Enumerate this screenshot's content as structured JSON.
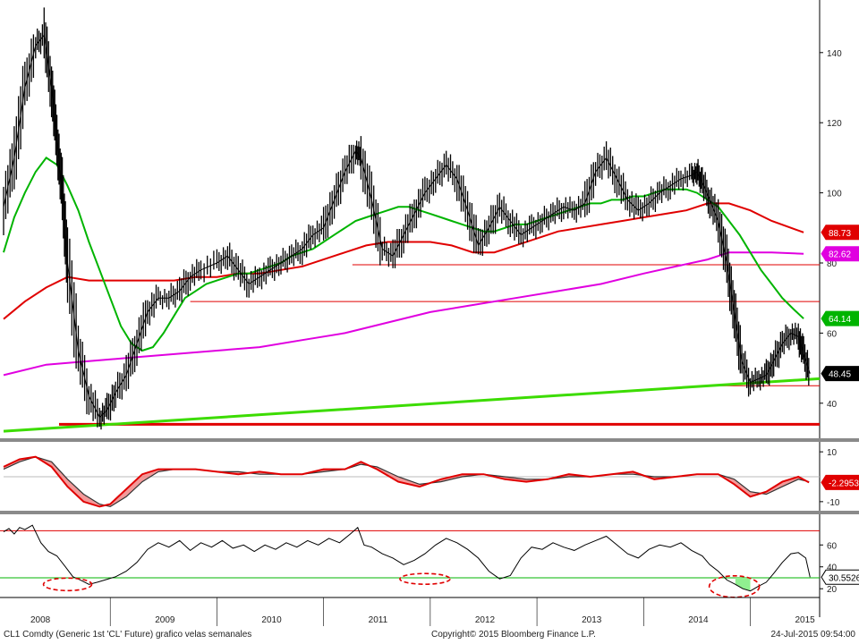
{
  "footer": {
    "left": "CL1 Comdty (Generic 1st 'CL' Future) grafico velas semanales",
    "center": "Copyright© 2015 Bloomberg Finance L.P.",
    "right": "24-Jul-2015 09:54:00"
  },
  "colors": {
    "price": "#000000",
    "ma_short": "#00b400",
    "ma_mid": "#e00000",
    "ma_long": "#e000e0",
    "trend_support": "#3cdc00",
    "support_line": "#e00000",
    "ellipse": "#e00000",
    "oversold_fill": "#90f090",
    "macd_fill": "#f08080"
  },
  "chart_data": [
    {
      "type": "line",
      "panel": "price",
      "ylim": [
        30,
        155
      ],
      "yticks": [
        40,
        60,
        80,
        100,
        120,
        140
      ],
      "x_years": [
        "2008",
        "2009",
        "2010",
        "2011",
        "2012",
        "2013",
        "2014",
        "2015"
      ],
      "x_range": [
        2008.0,
        2015.65
      ],
      "series": [
        {
          "role": "price",
          "x": [
            2008.0,
            2008.1,
            2008.2,
            2008.3,
            2008.38,
            2008.45,
            2008.5,
            2008.55,
            2008.6,
            2008.7,
            2008.8,
            2008.9,
            2008.97,
            2009.05,
            2009.15,
            2009.25,
            2009.35,
            2009.45,
            2009.55,
            2009.65,
            2009.75,
            2009.85,
            2010.0,
            2010.1,
            2010.2,
            2010.3,
            2010.4,
            2010.5,
            2010.6,
            2010.7,
            2010.8,
            2010.9,
            2011.0,
            2011.1,
            2011.2,
            2011.3,
            2011.35,
            2011.45,
            2011.55,
            2011.65,
            2011.75,
            2011.85,
            2011.95,
            2012.05,
            2012.15,
            2012.25,
            2012.35,
            2012.45,
            2012.55,
            2012.65,
            2012.75,
            2012.85,
            2012.95,
            2013.05,
            2013.15,
            2013.25,
            2013.35,
            2013.45,
            2013.55,
            2013.65,
            2013.75,
            2013.85,
            2013.95,
            2014.05,
            2014.15,
            2014.25,
            2014.35,
            2014.45,
            2014.5,
            2014.55,
            2014.62,
            2014.7,
            2014.78,
            2014.85,
            2014.92,
            2015.0,
            2015.08,
            2015.15,
            2015.22,
            2015.3,
            2015.38,
            2015.45,
            2015.5,
            2015.56
          ],
          "y": [
            96,
            110,
            130,
            142,
            145,
            130,
            115,
            100,
            80,
            55,
            42,
            36,
            38,
            43,
            48,
            57,
            66,
            70,
            70,
            72,
            76,
            78,
            80,
            82,
            78,
            74,
            76,
            78,
            80,
            82,
            84,
            88,
            90,
            98,
            106,
            112,
            110,
            98,
            84,
            82,
            88,
            94,
            100,
            104,
            108,
            104,
            95,
            85,
            90,
            96,
            92,
            88,
            90,
            92,
            94,
            96,
            95,
            97,
            106,
            110,
            104,
            98,
            95,
            97,
            100,
            102,
            104,
            105,
            106,
            103,
            98,
            92,
            80,
            66,
            52,
            46,
            47,
            48,
            52,
            57,
            60,
            59,
            54,
            48.45
          ]
        },
        {
          "role": "ma_short",
          "x": [
            2008.0,
            2008.1,
            2008.2,
            2008.3,
            2008.4,
            2008.5,
            2008.6,
            2008.7,
            2008.8,
            2008.9,
            2009.0,
            2009.1,
            2009.2,
            2009.3,
            2009.4,
            2009.5,
            2009.6,
            2009.7,
            2009.8,
            2009.9,
            2010.0,
            2010.1,
            2010.2,
            2010.3,
            2010.4,
            2010.5,
            2010.6,
            2010.7,
            2010.8,
            2010.9,
            2011.0,
            2011.1,
            2011.2,
            2011.3,
            2011.4,
            2011.5,
            2011.6,
            2011.7,
            2011.8,
            2011.9,
            2012.0,
            2012.1,
            2012.2,
            2012.3,
            2012.4,
            2012.5,
            2012.6,
            2012.7,
            2012.8,
            2012.9,
            2013.0,
            2013.1,
            2013.2,
            2013.3,
            2013.4,
            2013.5,
            2013.6,
            2013.7,
            2013.8,
            2013.9,
            2014.0,
            2014.1,
            2014.2,
            2014.3,
            2014.4,
            2014.5,
            2014.6,
            2014.7,
            2014.8,
            2014.9,
            2015.0,
            2015.1,
            2015.2,
            2015.3,
            2015.4,
            2015.5
          ],
          "y": [
            83,
            93,
            100,
            106,
            110,
            108,
            102,
            95,
            86,
            78,
            70,
            62,
            57,
            55,
            56,
            60,
            65,
            70,
            72,
            74,
            75,
            76,
            77,
            77,
            78,
            79,
            80,
            82,
            83,
            84,
            86,
            88,
            90,
            92,
            93,
            94,
            95,
            96,
            96,
            95,
            94,
            93,
            92,
            91,
            90,
            89,
            89,
            90,
            91,
            91,
            92,
            93,
            94,
            95,
            96,
            97,
            97,
            98,
            98,
            99,
            99,
            100,
            101,
            101,
            101,
            100,
            98,
            96,
            92,
            88,
            83,
            78,
            74,
            70,
            67,
            64.14
          ]
        },
        {
          "role": "ma_mid",
          "x": [
            2008.0,
            2008.2,
            2008.4,
            2008.6,
            2008.8,
            2009.0,
            2009.2,
            2009.4,
            2009.6,
            2009.8,
            2010.0,
            2010.2,
            2010.4,
            2010.6,
            2010.8,
            2011.0,
            2011.2,
            2011.4,
            2011.6,
            2011.8,
            2012.0,
            2012.2,
            2012.4,
            2012.6,
            2012.8,
            2013.0,
            2013.2,
            2013.4,
            2013.6,
            2013.8,
            2014.0,
            2014.2,
            2014.4,
            2014.6,
            2014.8,
            2015.0,
            2015.2,
            2015.5
          ],
          "y": [
            64,
            69,
            73,
            76,
            75,
            75,
            75,
            75,
            75,
            76,
            76,
            77,
            77,
            78,
            79,
            81,
            83,
            85,
            86,
            86,
            86,
            85,
            83,
            83,
            85,
            87,
            89,
            90,
            91,
            92,
            93,
            94,
            95,
            97,
            97,
            95,
            92,
            88.73
          ]
        },
        {
          "role": "ma_long",
          "x": [
            2008.0,
            2008.4,
            2008.8,
            2009.2,
            2009.6,
            2010.0,
            2010.4,
            2010.8,
            2011.2,
            2011.6,
            2012.0,
            2012.4,
            2012.8,
            2013.2,
            2013.6,
            2014.0,
            2014.3,
            2014.6,
            2014.8,
            2015.0,
            2015.2,
            2015.5
          ],
          "y": [
            48,
            51,
            52,
            53,
            54,
            55,
            56,
            58,
            60,
            63,
            66,
            68,
            70,
            72,
            74,
            77,
            79,
            81,
            83,
            83,
            83,
            82.62
          ]
        },
        {
          "role": "trend_support",
          "x": [
            2008.0,
            2015.65
          ],
          "y": [
            32,
            47
          ]
        },
        {
          "role": "support_line",
          "x": [
            2008.52,
            2015.65
          ],
          "y": [
            34,
            34
          ]
        },
        {
          "role": "resistance_1",
          "x": [
            2011.27,
            2015.65
          ],
          "y": [
            79.5,
            79.5
          ]
        },
        {
          "role": "resistance_2",
          "x": [
            2009.75,
            2015.65
          ],
          "y": [
            69,
            69
          ]
        },
        {
          "role": "support_recent",
          "x": [
            2014.65,
            2015.65
          ],
          "y": [
            45,
            45
          ]
        }
      ],
      "last_value_labels": [
        {
          "value": "88.73",
          "bg": "#e00000",
          "fg": "#ffffff",
          "y": 88.73
        },
        {
          "value": "82.62",
          "bg": "#e000e0",
          "fg": "#ffffff",
          "y": 82.62
        },
        {
          "value": "64.14",
          "bg": "#00b400",
          "fg": "#ffffff",
          "y": 64.14
        },
        {
          "value": "48.45",
          "bg": "#000000",
          "fg": "#ffffff",
          "y": 48.45
        }
      ]
    },
    {
      "type": "line",
      "panel": "macd",
      "ylim": [
        -14,
        14
      ],
      "yticks": [
        10,
        -10
      ],
      "series": [
        {
          "role": "macd",
          "x": [
            2008.0,
            2008.15,
            2008.3,
            2008.45,
            2008.6,
            2008.75,
            2008.9,
            2009.0,
            2009.15,
            2009.3,
            2009.45,
            2009.6,
            2009.8,
            2010.0,
            2010.2,
            2010.4,
            2010.6,
            2010.8,
            2011.0,
            2011.2,
            2011.35,
            2011.5,
            2011.7,
            2011.9,
            2012.1,
            2012.3,
            2012.5,
            2012.7,
            2012.9,
            2013.1,
            2013.3,
            2013.5,
            2013.7,
            2013.9,
            2014.1,
            2014.3,
            2014.5,
            2014.7,
            2014.85,
            2015.0,
            2015.15,
            2015.3,
            2015.45,
            2015.55
          ],
          "y": [
            4,
            7,
            8,
            4,
            -4,
            -10,
            -12,
            -11,
            -5,
            1,
            3,
            3,
            3,
            2,
            1,
            2,
            1,
            1,
            3,
            3,
            6,
            3,
            -2,
            -4,
            -1,
            1,
            1,
            -1,
            -2,
            -1,
            1,
            0,
            1,
            2,
            -1,
            0,
            1,
            1,
            -3,
            -8,
            -6,
            -2,
            0,
            -2.2953
          ]
        },
        {
          "role": "signal",
          "x": [
            2008.0,
            2008.15,
            2008.3,
            2008.45,
            2008.6,
            2008.75,
            2008.9,
            2009.0,
            2009.15,
            2009.3,
            2009.45,
            2009.6,
            2009.8,
            2010.0,
            2010.2,
            2010.4,
            2010.6,
            2010.8,
            2011.0,
            2011.2,
            2011.35,
            2011.5,
            2011.7,
            2011.9,
            2012.1,
            2012.3,
            2012.5,
            2012.7,
            2012.9,
            2013.1,
            2013.3,
            2013.5,
            2013.7,
            2013.9,
            2014.1,
            2014.3,
            2014.5,
            2014.7,
            2014.85,
            2015.0,
            2015.15,
            2015.3,
            2015.45,
            2015.55
          ],
          "y": [
            3,
            6,
            8,
            6,
            -1,
            -7,
            -11,
            -12,
            -8,
            -2,
            2,
            3,
            3,
            2,
            2,
            1,
            1,
            1,
            2,
            3,
            5,
            4,
            0,
            -3,
            -2,
            0,
            1,
            0,
            -1,
            -1,
            0,
            0,
            1,
            1,
            0,
            0,
            1,
            1,
            -1,
            -6,
            -7,
            -4,
            -1,
            -2
          ]
        }
      ],
      "last_value_labels": [
        {
          "value": "-2.2953",
          "bg": "#e00000",
          "fg": "#ffffff",
          "y": -2.2953
        }
      ]
    },
    {
      "type": "line",
      "panel": "rsi",
      "ylim": [
        12,
        88
      ],
      "yticks": [
        60,
        40,
        20
      ],
      "hlines": [
        {
          "y": 30,
          "color": "#00b400"
        },
        {
          "y": 73,
          "color": "#e00000"
        }
      ],
      "series": [
        {
          "role": "rsi",
          "x": [
            2008.0,
            2008.05,
            2008.1,
            2008.15,
            2008.2,
            2008.27,
            2008.35,
            2008.42,
            2008.5,
            2008.58,
            2008.65,
            2008.72,
            2008.8,
            2008.88,
            2008.95,
            2009.05,
            2009.15,
            2009.25,
            2009.35,
            2009.45,
            2009.55,
            2009.65,
            2009.75,
            2009.85,
            2009.95,
            2010.05,
            2010.15,
            2010.25,
            2010.35,
            2010.45,
            2010.55,
            2010.65,
            2010.75,
            2010.85,
            2010.95,
            2011.05,
            2011.15,
            2011.25,
            2011.32,
            2011.38,
            2011.45,
            2011.55,
            2011.65,
            2011.75,
            2011.85,
            2011.95,
            2012.05,
            2012.15,
            2012.25,
            2012.35,
            2012.45,
            2012.55,
            2012.65,
            2012.75,
            2012.85,
            2012.95,
            2013.05,
            2013.15,
            2013.25,
            2013.35,
            2013.45,
            2013.55,
            2013.65,
            2013.75,
            2013.85,
            2013.95,
            2014.05,
            2014.15,
            2014.25,
            2014.35,
            2014.45,
            2014.55,
            2014.62,
            2014.7,
            2014.78,
            2014.86,
            2014.93,
            2015.0,
            2015.07,
            2015.15,
            2015.22,
            2015.3,
            2015.38,
            2015.45,
            2015.52,
            2015.56
          ],
          "y": [
            72,
            75,
            70,
            76,
            74,
            78,
            62,
            54,
            50,
            40,
            31,
            28,
            24,
            26,
            28,
            31,
            36,
            44,
            56,
            62,
            58,
            64,
            55,
            62,
            58,
            64,
            57,
            60,
            54,
            60,
            56,
            62,
            58,
            64,
            60,
            66,
            62,
            70,
            76,
            60,
            58,
            52,
            48,
            42,
            46,
            52,
            60,
            66,
            62,
            56,
            48,
            36,
            29,
            32,
            48,
            58,
            56,
            62,
            58,
            55,
            60,
            64,
            68,
            60,
            52,
            48,
            56,
            60,
            58,
            62,
            55,
            50,
            42,
            36,
            28,
            24,
            20,
            18,
            22,
            26,
            34,
            44,
            52,
            53,
            48,
            30.55
          ]
        }
      ],
      "last_value_labels": [
        {
          "value": "30.5526",
          "bg": "#ffffff",
          "fg": "#000000",
          "y": 30.55
        }
      ]
    }
  ]
}
